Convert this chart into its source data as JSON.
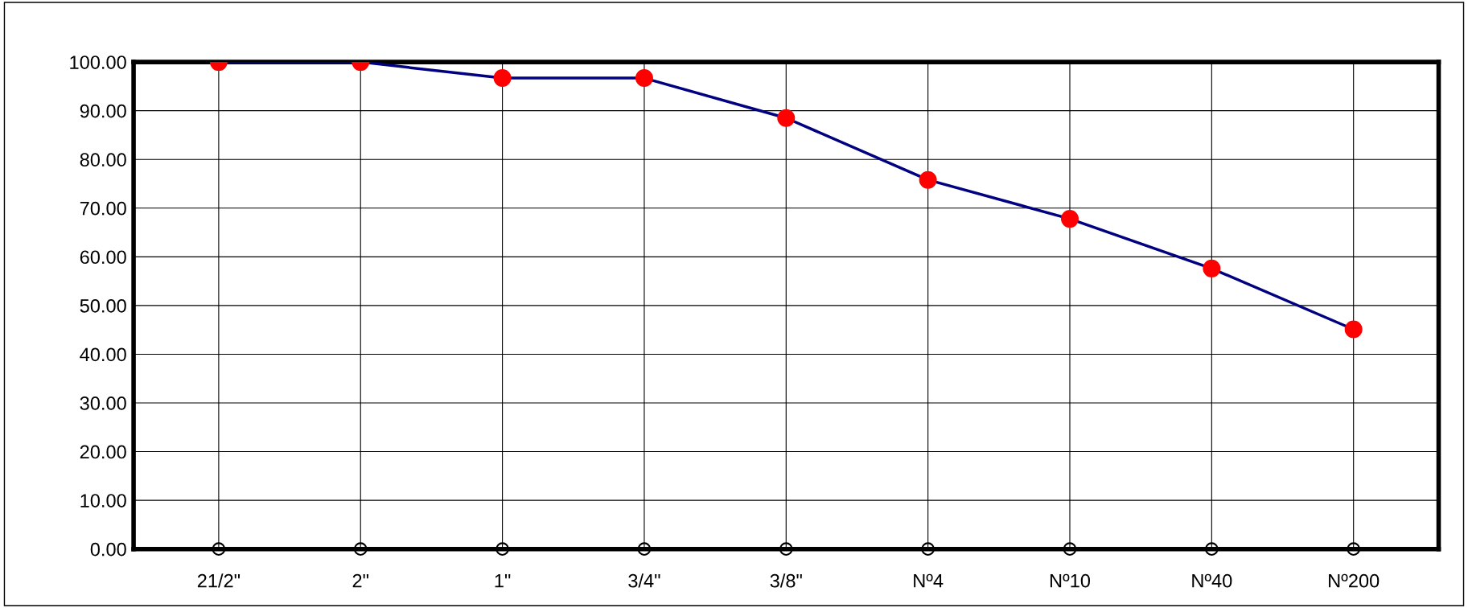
{
  "chart_data": {
    "type": "line",
    "grid": true,
    "categories": [
      "21/2\"",
      "2\"",
      "1\"",
      "3/4\"",
      "3/8\"",
      "Nº4",
      "Nº10",
      "Nº40",
      "Nº200"
    ],
    "ylim": [
      0,
      100
    ],
    "yticks": [
      {
        "value": 0,
        "label": "0.00"
      },
      {
        "value": 10,
        "label": "10.00"
      },
      {
        "value": 20,
        "label": "20.00"
      },
      {
        "value": 30,
        "label": "30.00"
      },
      {
        "value": 40,
        "label": "40.00"
      },
      {
        "value": 50,
        "label": "50.00"
      },
      {
        "value": 60,
        "label": "60.00"
      },
      {
        "value": 70,
        "label": "70.00"
      },
      {
        "value": 80,
        "label": "80.00"
      },
      {
        "value": 90,
        "label": "90.00"
      },
      {
        "value": 100,
        "label": "100.00"
      }
    ],
    "series": [
      {
        "color": "#000080",
        "colors": [
          "#ff0000",
          "#ff0000",
          "#ff0000",
          "#ff0000",
          "#ff0000",
          "#ff0000",
          "#ff0000",
          "#ff0000",
          "#ff0000"
        ],
        "marker": "circle",
        "values": [
          100,
          100,
          96.7,
          96.7,
          88.5,
          75.8,
          67.8,
          57.6,
          45.1
        ]
      },
      {
        "type": "scatter",
        "color": "#000000",
        "marker": "circle",
        "values": [
          0,
          0,
          0,
          0,
          0,
          0,
          0,
          0,
          0
        ]
      }
    ]
  }
}
